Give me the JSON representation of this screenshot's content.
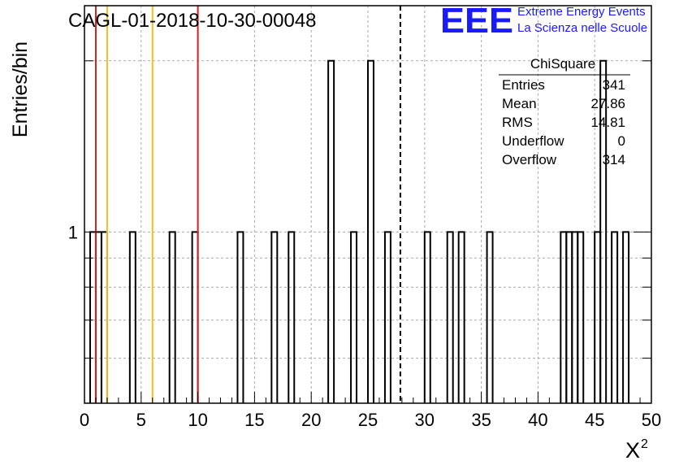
{
  "chart_data": {
    "type": "histogram",
    "title": "CAGL-01-2018-10-30-00048",
    "xlabel": "X",
    "xlabel_superscript": "2",
    "ylabel": "Entries/bin",
    "xlim": [
      0,
      50
    ],
    "ylim": [
      0.5,
      2.5
    ],
    "y_scale": "log",
    "grid": true,
    "x_ticks": [
      "0",
      "5",
      "10",
      "15",
      "20",
      "25",
      "30",
      "35",
      "40",
      "45",
      "50"
    ],
    "y_tick_labels": [
      {
        "value": 1,
        "label": "1"
      }
    ],
    "bin_width": 0.5,
    "bins": [
      {
        "x0": 0.5,
        "count": 1
      },
      {
        "x0": 1.0,
        "count": 1
      },
      {
        "x0": 1.5,
        "count": 1
      },
      {
        "x0": 4.0,
        "count": 1
      },
      {
        "x0": 7.5,
        "count": 1
      },
      {
        "x0": 9.5,
        "count": 1
      },
      {
        "x0": 13.5,
        "count": 1
      },
      {
        "x0": 16.5,
        "count": 1
      },
      {
        "x0": 18.0,
        "count": 1
      },
      {
        "x0": 21.5,
        "count": 2
      },
      {
        "x0": 23.5,
        "count": 1
      },
      {
        "x0": 25.0,
        "count": 2
      },
      {
        "x0": 26.5,
        "count": 1
      },
      {
        "x0": 30.0,
        "count": 1
      },
      {
        "x0": 32.0,
        "count": 1
      },
      {
        "x0": 33.0,
        "count": 1
      },
      {
        "x0": 35.5,
        "count": 1
      },
      {
        "x0": 42.0,
        "count": 1
      },
      {
        "x0": 42.5,
        "count": 1
      },
      {
        "x0": 43.0,
        "count": 1
      },
      {
        "x0": 43.5,
        "count": 1
      },
      {
        "x0": 45.0,
        "count": 1
      },
      {
        "x0": 45.5,
        "count": 2
      },
      {
        "x0": 46.5,
        "count": 1
      },
      {
        "x0": 47.5,
        "count": 1
      }
    ],
    "reference_lines": [
      {
        "x": 1,
        "color": "#d42020"
      },
      {
        "x": 2,
        "color": "#f0c020"
      },
      {
        "x": 6,
        "color": "#f0c020"
      },
      {
        "x": 10,
        "color": "#d42020"
      },
      {
        "x": 27.86,
        "color": "#000000",
        "style": "dashed"
      }
    ],
    "stats_box": {
      "title": "ChiSquare",
      "rows": [
        {
          "label": "Entries",
          "value": "341"
        },
        {
          "label": "Mean",
          "value": "27.86"
        },
        {
          "label": "RMS",
          "value": "14.81"
        },
        {
          "label": "Underflow",
          "value": "0"
        },
        {
          "label": "Overflow",
          "value": "314"
        }
      ]
    }
  },
  "logo": {
    "mark": "EEE",
    "line1": "Extreme Energy Events",
    "line2": "La Scienza nelle Scuole",
    "color": "#1a1aff"
  }
}
